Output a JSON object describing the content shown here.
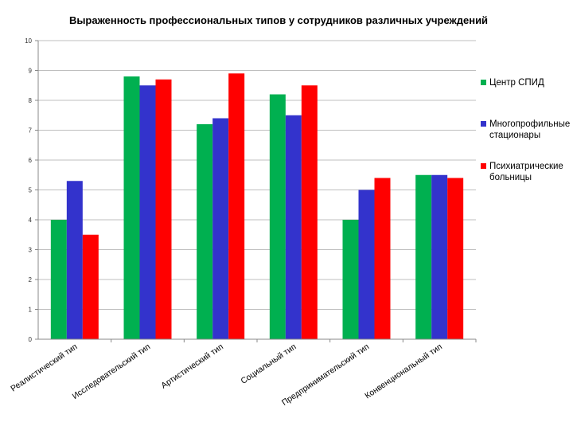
{
  "chart_data": {
    "type": "bar",
    "title": "Выраженность профессиональных типов у сотрудников различных учреждений",
    "xlabel": "",
    "ylabel": "",
    "ylim": [
      0,
      10
    ],
    "yticks": [
      "0",
      "1",
      "2",
      "3",
      "4",
      "5",
      "6",
      "7",
      "8",
      "9",
      "10"
    ],
    "grid": true,
    "legend_position": "right",
    "categories": [
      "Реалистический тип",
      "Исследовательский тип",
      "Артистический тип",
      "Социальный тип",
      "Предпринимательский тип",
      "Конвенциональный тип"
    ],
    "series": [
      {
        "name": "Центр СПИД",
        "legend_lines": [
          "Центр СПИД"
        ],
        "color": "#00b050",
        "values": [
          4.0,
          8.8,
          7.2,
          8.2,
          4.0,
          5.5
        ]
      },
      {
        "name": "Многопрофильные стационары",
        "legend_lines": [
          "Многопрофильные",
          "стационары"
        ],
        "color": "#3333cc",
        "values": [
          5.3,
          8.5,
          7.4,
          7.5,
          5.0,
          5.5
        ]
      },
      {
        "name": "Психиатрические больницы",
        "legend_lines": [
          "Психиатрические",
          "больницы"
        ],
        "color": "#ff0000",
        "values": [
          3.5,
          8.7,
          8.9,
          8.5,
          5.4,
          5.4
        ]
      }
    ]
  }
}
